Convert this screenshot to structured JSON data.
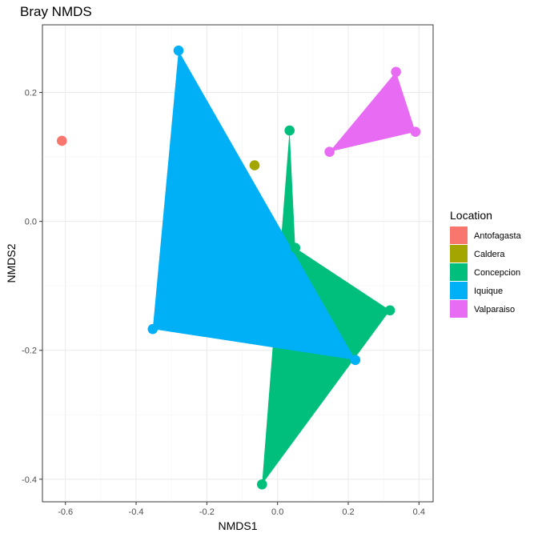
{
  "chart_data": {
    "type": "scatter",
    "title": "Bray NMDS",
    "xlabel": "NMDS1",
    "ylabel": "NMDS2",
    "xlim": [
      -0.665,
      0.44
    ],
    "ylim": [
      -0.435,
      0.305
    ],
    "x_ticks": [
      -0.6,
      -0.4,
      -0.2,
      0.0,
      0.2,
      0.4
    ],
    "x_tick_labels": [
      "-0.6",
      "-0.4",
      "-0.2",
      "0.0",
      "0.2",
      "0.4"
    ],
    "y_ticks": [
      -0.4,
      -0.2,
      0.0,
      0.2
    ],
    "y_tick_labels": [
      "-0.4",
      "-0.2",
      "0.0",
      "0.2"
    ],
    "grid": true,
    "legend_title": "Location",
    "legend_placement": "right",
    "series": [
      {
        "name": "Antofagasta",
        "color": "#F8766D",
        "points": [
          [
            -0.61,
            0.125
          ]
        ],
        "hull": [
          [
            -0.61,
            0.125
          ]
        ]
      },
      {
        "name": "Caldera",
        "color": "#A3A500",
        "points": [
          [
            -0.065,
            0.087
          ]
        ],
        "hull": [
          [
            -0.065,
            0.087
          ]
        ]
      },
      {
        "name": "Concepcion",
        "color": "#00BF7D",
        "points": [
          [
            0.034,
            0.141
          ],
          [
            0.05,
            -0.041
          ],
          [
            0.318,
            -0.138
          ],
          [
            -0.044,
            -0.408
          ]
        ],
        "hull": [
          [
            0.034,
            0.141
          ],
          [
            0.05,
            -0.041
          ],
          [
            0.318,
            -0.138
          ],
          [
            -0.044,
            -0.408
          ]
        ]
      },
      {
        "name": "Iquique",
        "color": "#00B0F6",
        "points": [
          [
            -0.28,
            0.265
          ],
          [
            -0.353,
            -0.167
          ],
          [
            -0.148,
            -0.128
          ],
          [
            0.22,
            -0.215
          ]
        ],
        "hull": [
          [
            -0.28,
            0.265
          ],
          [
            -0.353,
            -0.167
          ],
          [
            0.22,
            -0.215
          ]
        ]
      },
      {
        "name": "Valparaiso",
        "color": "#E76BF3",
        "points": [
          [
            0.335,
            0.232
          ],
          [
            0.39,
            0.139
          ],
          [
            0.147,
            0.108
          ]
        ],
        "hull": [
          [
            0.335,
            0.232
          ],
          [
            0.39,
            0.139
          ],
          [
            0.147,
            0.108
          ]
        ]
      }
    ]
  }
}
